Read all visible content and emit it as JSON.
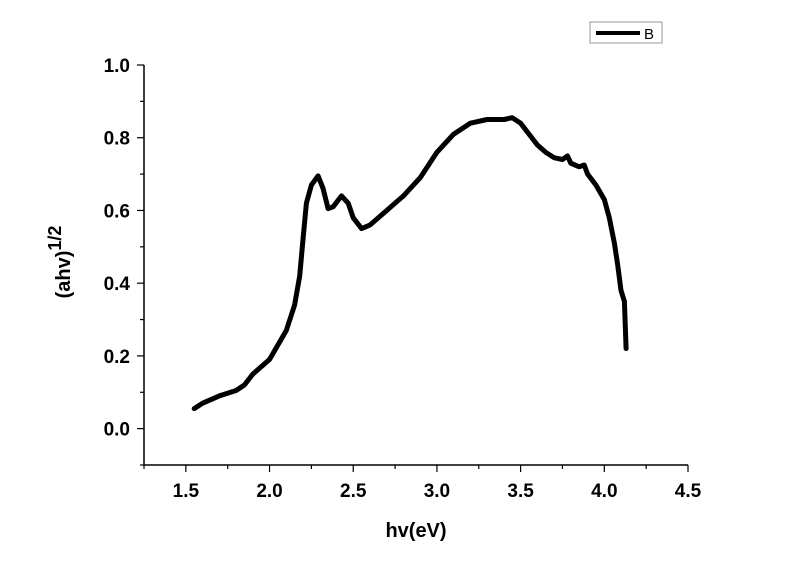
{
  "chart_data": {
    "type": "line",
    "title": "",
    "xlabel": "hv(eV)",
    "ylabel_base": "(ahv)",
    "ylabel_sup": "1/2",
    "xlim": [
      1.25,
      4.5
    ],
    "ylim": [
      -0.1,
      1.0
    ],
    "xticks": [
      1.5,
      2.0,
      2.5,
      3.0,
      3.5,
      4.0,
      4.5
    ],
    "xtick_labels": [
      "1.5",
      "2.0",
      "2.5",
      "3.0",
      "3.5",
      "4.0",
      "4.5"
    ],
    "yticks": [
      0.0,
      0.2,
      0.4,
      0.6,
      0.8,
      1.0
    ],
    "ytick_labels": [
      "0.0",
      "0.2",
      "0.4",
      "0.6",
      "0.8",
      "1.0"
    ],
    "grid": false,
    "legend_placement": "top-right",
    "series": [
      {
        "name": "B",
        "color": "#000000",
        "x": [
          1.55,
          1.6,
          1.7,
          1.8,
          1.85,
          1.9,
          1.95,
          2.0,
          2.05,
          2.1,
          2.15,
          2.18,
          2.2,
          2.22,
          2.25,
          2.29,
          2.32,
          2.35,
          2.38,
          2.43,
          2.47,
          2.5,
          2.55,
          2.6,
          2.7,
          2.8,
          2.9,
          3.0,
          3.1,
          3.2,
          3.3,
          3.4,
          3.45,
          3.5,
          3.55,
          3.6,
          3.65,
          3.7,
          3.75,
          3.78,
          3.8,
          3.85,
          3.88,
          3.9,
          3.95,
          4.0,
          4.03,
          4.06,
          4.08,
          4.1,
          4.12,
          4.13
        ],
        "y": [
          0.055,
          0.07,
          0.09,
          0.105,
          0.12,
          0.15,
          0.17,
          0.19,
          0.23,
          0.27,
          0.34,
          0.42,
          0.52,
          0.62,
          0.67,
          0.695,
          0.66,
          0.605,
          0.61,
          0.64,
          0.62,
          0.58,
          0.55,
          0.56,
          0.6,
          0.64,
          0.69,
          0.76,
          0.81,
          0.84,
          0.85,
          0.85,
          0.855,
          0.84,
          0.81,
          0.78,
          0.76,
          0.745,
          0.74,
          0.75,
          0.73,
          0.72,
          0.725,
          0.7,
          0.67,
          0.63,
          0.58,
          0.51,
          0.45,
          0.38,
          0.35,
          0.22
        ]
      }
    ]
  }
}
